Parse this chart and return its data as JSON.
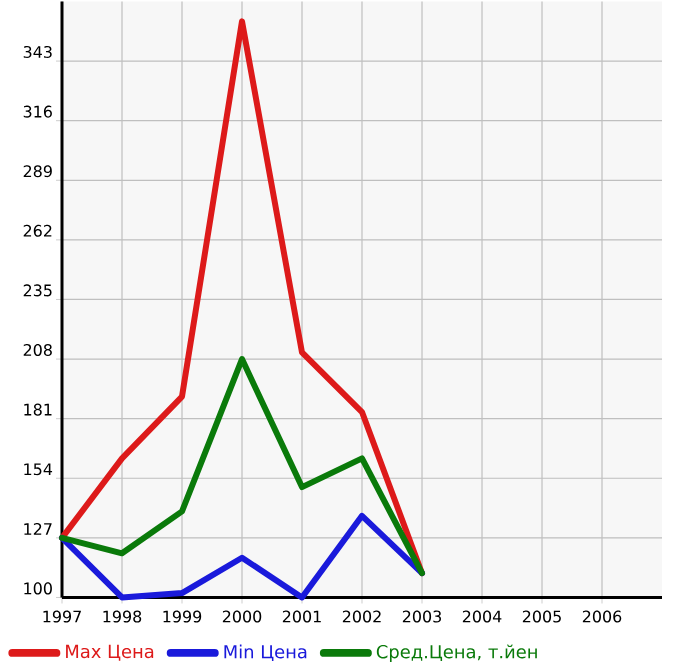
{
  "chart_data": {
    "type": "line",
    "x": [
      1997,
      1998,
      1999,
      2000,
      2001,
      2002,
      2003
    ],
    "series": [
      {
        "name": "Max Цена",
        "color": "#dd1a1a",
        "values": [
          127,
          163,
          191,
          361,
          211,
          184,
          111
        ]
      },
      {
        "name": "Min Цена",
        "color": "#1a1adb",
        "values": [
          127,
          100,
          102,
          118,
          100,
          137,
          111
        ]
      },
      {
        "name": "Сред.Цена, т.йен",
        "color": "#0a7a0a",
        "values": [
          127,
          120,
          139,
          208,
          150,
          163,
          111
        ]
      }
    ],
    "xlim": [
      1997,
      2007
    ],
    "ylim": [
      100,
      370
    ],
    "xticks": [
      1997,
      1998,
      1999,
      2000,
      2001,
      2002,
      2003,
      2004,
      2005,
      2006
    ],
    "yticks": [
      100,
      127,
      154,
      181,
      208,
      235,
      262,
      289,
      316,
      343
    ],
    "grid": true,
    "legend": "bottom"
  }
}
